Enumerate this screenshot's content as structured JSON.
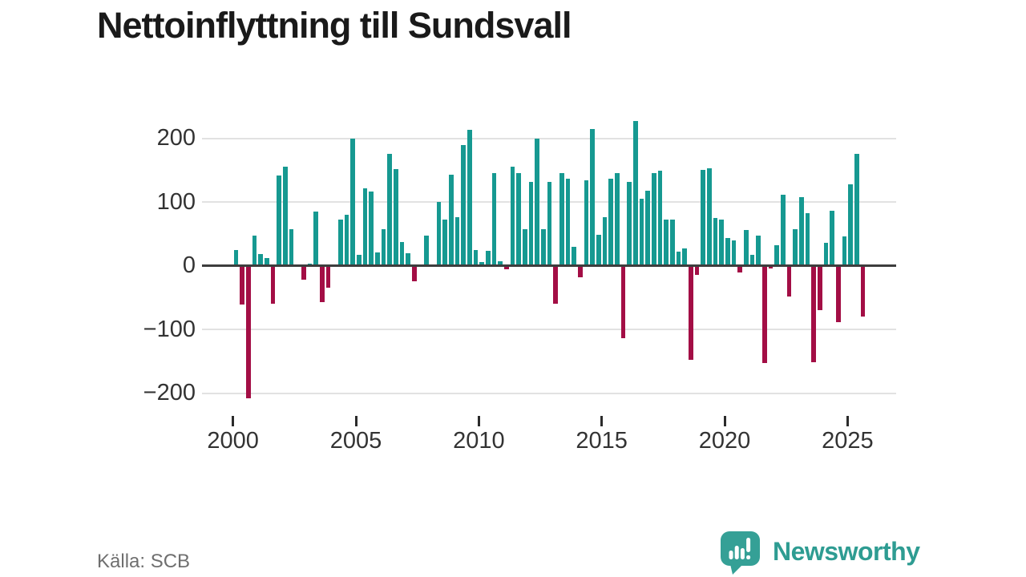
{
  "header": {
    "title": "Nettoinflyttning till Sundsvall"
  },
  "footer": {
    "source": "Källa: SCB",
    "brand": "Newsworthy"
  },
  "colors": {
    "positive": "#169991",
    "negative": "#a30e45",
    "axis_text": "#333333",
    "grid": "#e2e2e2",
    "zero_line": "#3d3d3d",
    "title_text": "#1a1a1a",
    "source_text": "#6f6f6f",
    "brand_teal": "#35a096"
  },
  "chart_data": {
    "type": "bar",
    "title": "Nettoinflyttning till Sundsvall",
    "frequency": "quarterly",
    "x_start": "2000-Q1",
    "x_end": "2025-Q3",
    "values": [
      25,
      -61,
      -208,
      48,
      18,
      12,
      -60,
      142,
      155,
      57,
      0,
      -22,
      3,
      85,
      -57,
      -34,
      0,
      73,
      80,
      199,
      17,
      122,
      116,
      21,
      57,
      176,
      152,
      37,
      20,
      -24,
      0,
      47,
      0,
      100,
      72,
      143,
      76,
      189,
      213,
      25,
      6,
      24,
      145,
      7,
      -6,
      156,
      145,
      58,
      131,
      200,
      57,
      131,
      -59,
      145,
      136,
      30,
      -18,
      134,
      215,
      49,
      76,
      136,
      146,
      -114,
      132,
      227,
      105,
      118,
      146,
      149,
      73,
      73,
      22,
      27,
      -148,
      -14,
      150,
      153,
      75,
      72,
      43,
      40,
      -10,
      56,
      17,
      47,
      -152,
      -4,
      32,
      111,
      -48,
      57,
      108,
      82,
      -151,
      -70,
      36,
      86,
      -88,
      46,
      128,
      176,
      -79
    ],
    "yticks": [
      200,
      100,
      0,
      -100,
      -200
    ],
    "xticks": [
      2000,
      2005,
      2010,
      2015,
      2020,
      2025
    ],
    "ylim": [
      -230,
      240
    ],
    "grid": true,
    "legend": false,
    "positive_color": "#169991",
    "negative_color": "#a30e45"
  }
}
